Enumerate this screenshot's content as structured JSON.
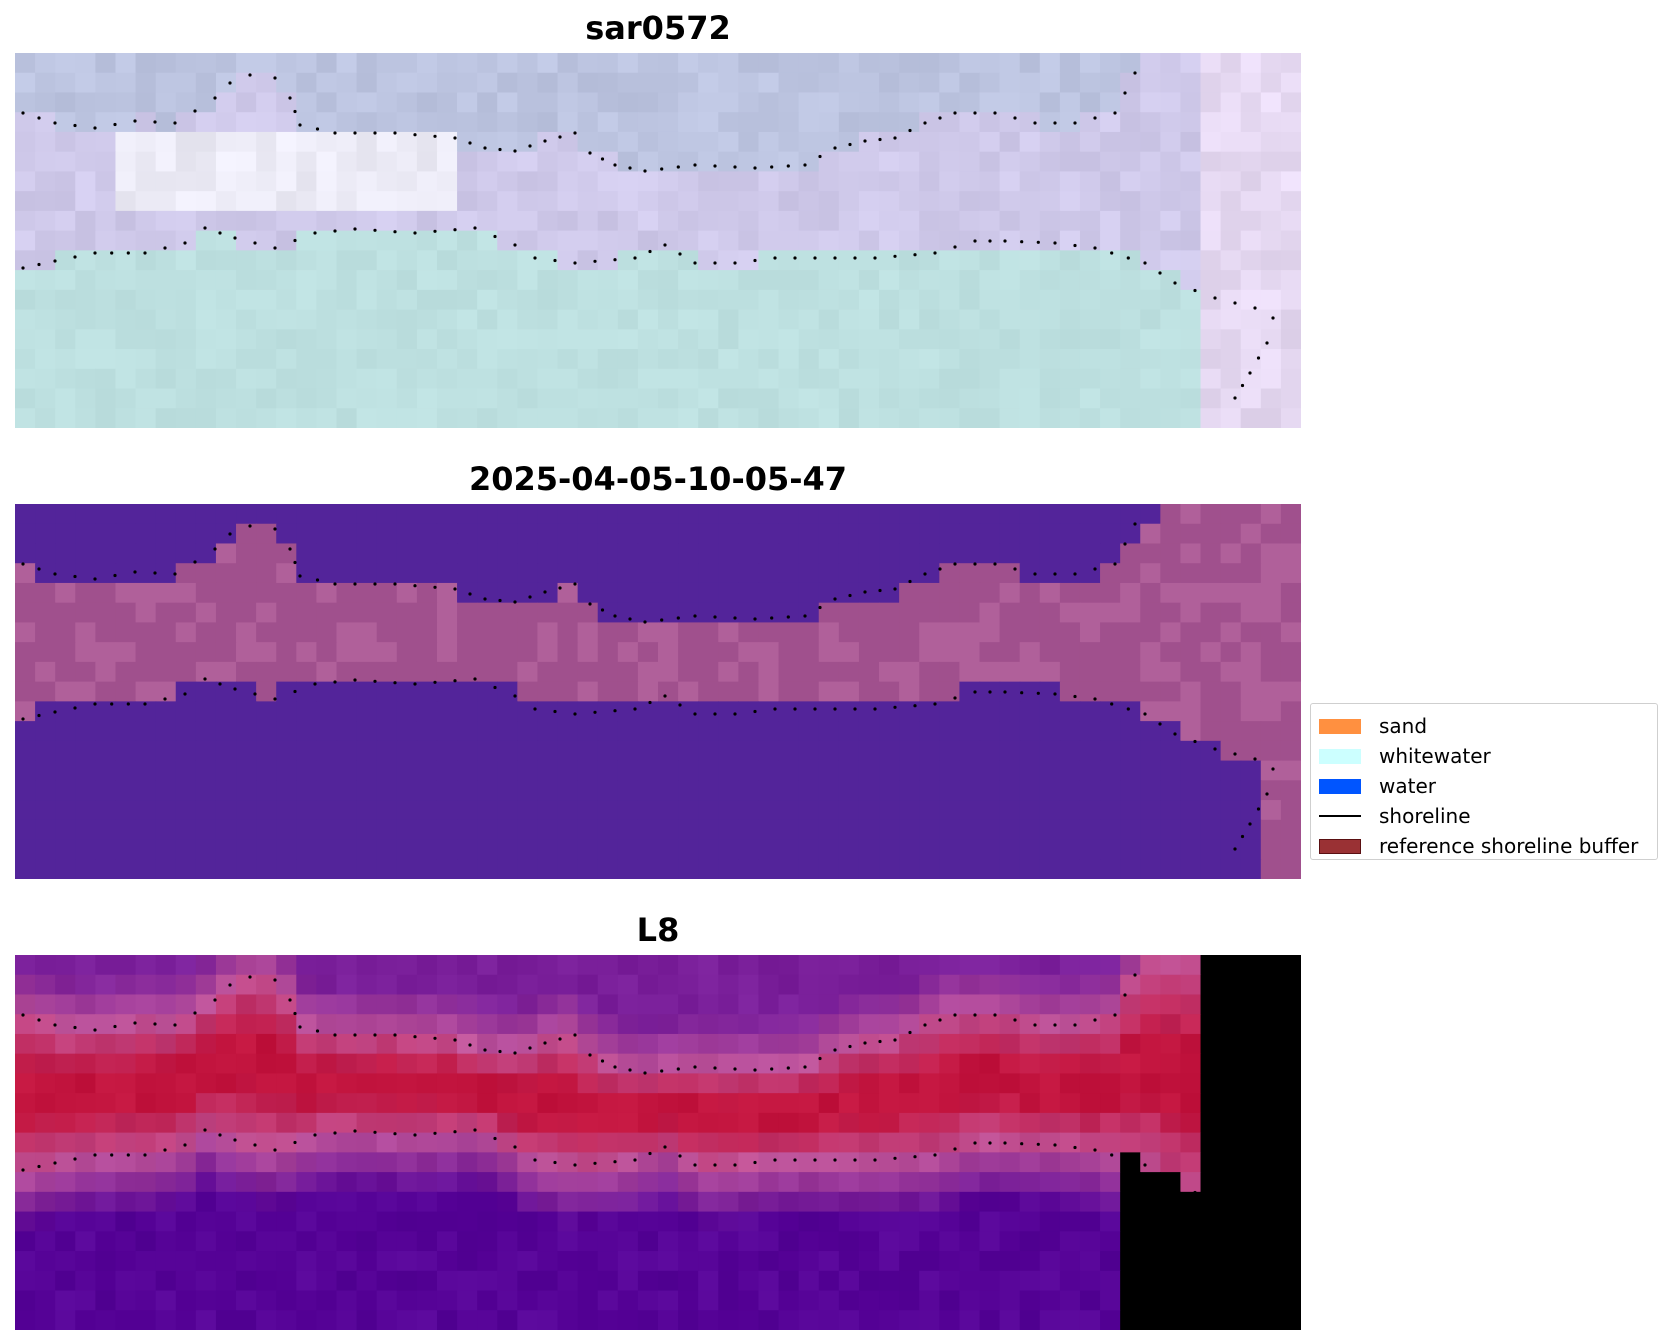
{
  "panels": [
    {
      "title": "sar0572",
      "style": "rgb",
      "colors": {
        "top": "#bcc4e0",
        "band": "#cfc9ea",
        "bright": "#ecebf6",
        "water": "#bde0e0",
        "edge": "#e6d9f2"
      }
    },
    {
      "title": "2025-04-05-10-05-47",
      "style": "classification",
      "colors": {
        "water": "#53249a",
        "land": "#a0508d",
        "land_light": "#b0609a"
      }
    },
    {
      "title": "L8",
      "style": "index",
      "colors": {
        "deep": "#560397",
        "mid": "#7a1f9a",
        "light": "#c0559a",
        "hot": "#c2143e",
        "hot2": "#b8003a"
      }
    }
  ],
  "legend": {
    "items": [
      {
        "label": "sand",
        "color": "#ff9040",
        "kind": "patch"
      },
      {
        "label": "whitewater",
        "color": "#ccffff",
        "kind": "patch"
      },
      {
        "label": "water",
        "color": "#0055ff",
        "kind": "patch"
      },
      {
        "label": "shoreline",
        "color": "#000000",
        "kind": "line"
      },
      {
        "label": "reference shoreline buffer",
        "color": "#9a3134",
        "kind": "patch"
      }
    ]
  }
}
